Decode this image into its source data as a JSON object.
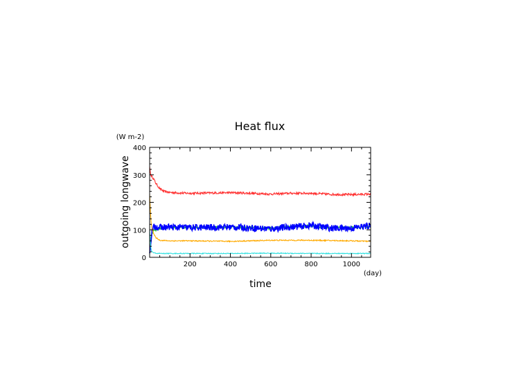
{
  "chart_data": {
    "type": "line",
    "title": "Heat flux",
    "xlabel": "time",
    "xunit": "(day)",
    "ylabel": "outgoing longwave",
    "yunit": "(W m-2)",
    "xlim": [
      0,
      1095
    ],
    "ylim": [
      0,
      400
    ],
    "xticks": [
      200,
      400,
      600,
      800,
      1000
    ],
    "yticks": [
      0,
      100,
      200,
      300,
      400
    ],
    "grid": false,
    "series": [
      {
        "color": "#ff3030",
        "x": [
          0,
          5,
          10,
          20,
          30,
          50,
          70,
          100,
          150,
          200,
          300,
          400,
          500,
          600,
          700,
          800,
          900,
          1000,
          1095
        ],
        "values": [
          330,
          300,
          295,
          285,
          270,
          250,
          240,
          236,
          234,
          233,
          234,
          235,
          233,
          230,
          233,
          233,
          229,
          228,
          230
        ],
        "noise": 4
      },
      {
        "color": "#30e030",
        "x": [
          0,
          5,
          10,
          20,
          30,
          50,
          100,
          200,
          400,
          600,
          700,
          800,
          900,
          1000,
          1095
        ],
        "values": [
          10,
          60,
          85,
          95,
          100,
          105,
          108,
          110,
          110,
          106,
          112,
          114,
          108,
          108,
          112
        ],
        "noise": 4
      },
      {
        "color": "#0000ff",
        "x": [
          0,
          5,
          10,
          20,
          30,
          50,
          100,
          200,
          400,
          600,
          700,
          800,
          900,
          1000,
          1095
        ],
        "values": [
          15,
          40,
          90,
          110,
          112,
          108,
          110,
          108,
          110,
          104,
          110,
          116,
          106,
          106,
          115
        ],
        "noise": 12
      },
      {
        "color": "#ffaa00",
        "x": [
          0,
          5,
          10,
          20,
          30,
          50,
          100,
          200,
          400,
          600,
          800,
          1000,
          1095
        ],
        "values": [
          230,
          150,
          110,
          85,
          72,
          62,
          60,
          60,
          58,
          62,
          62,
          60,
          58
        ],
        "noise": 2
      },
      {
        "color": "#30e0e0",
        "x": [
          0,
          5,
          10,
          20,
          30,
          50,
          100,
          200,
          400,
          600,
          800,
          1000,
          1095
        ],
        "values": [
          100,
          40,
          22,
          16,
          15,
          14,
          14,
          14,
          14,
          15,
          14,
          14,
          14
        ],
        "noise": 1.5
      }
    ]
  }
}
